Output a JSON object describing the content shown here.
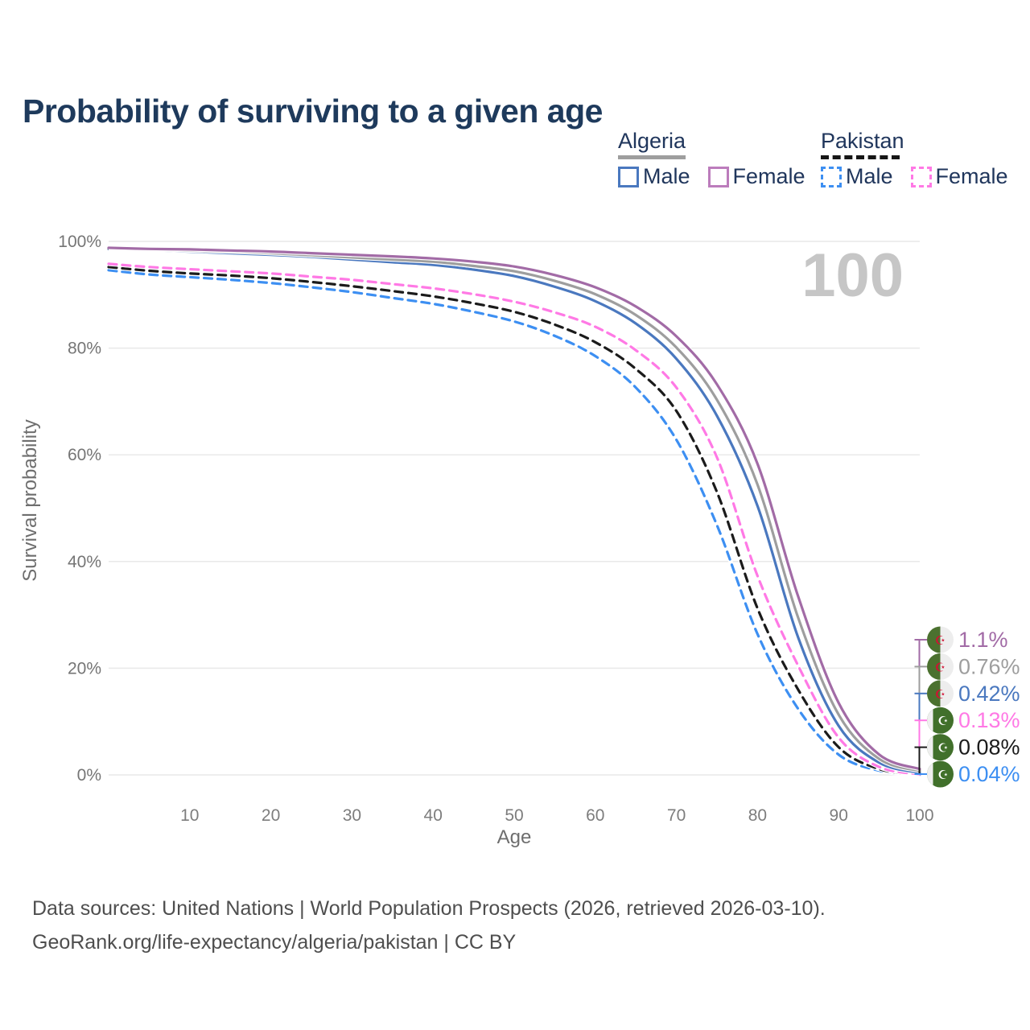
{
  "title": "Probability of surviving to a given age",
  "watermark_age": "100",
  "legend": {
    "groups": [
      {
        "label": "Algeria",
        "line_style": "solid",
        "line_color": "#9e9e9e",
        "items": [
          {
            "label": "Male",
            "color": "#4a78bf",
            "dash": false
          },
          {
            "label": "Female",
            "color": "#bc7cbc",
            "dash": false
          }
        ]
      },
      {
        "label": "Pakistan",
        "line_style": "dashed",
        "line_color": "#161616",
        "items": [
          {
            "label": "Male",
            "color": "#3d8ff2",
            "dash": true
          },
          {
            "label": "Female",
            "color": "#ff79e5",
            "dash": true
          }
        ]
      }
    ]
  },
  "axes": {
    "x": {
      "label": "Age",
      "ticks": [
        10,
        20,
        30,
        40,
        50,
        60,
        70,
        80,
        90,
        100
      ],
      "min": 0,
      "max": 100
    },
    "y": {
      "label": "Survival probability",
      "ticks": [
        "0%",
        "20%",
        "40%",
        "60%",
        "80%",
        "100%"
      ],
      "tick_values": [
        0,
        20,
        40,
        60,
        80,
        100
      ],
      "min": 0,
      "max": 100
    }
  },
  "chart_data": {
    "type": "line",
    "title": "Probability of surviving to a given age",
    "xlabel": "Age",
    "ylabel": "Survival probability",
    "xlim": [
      0,
      100
    ],
    "ylim": [
      0,
      100
    ],
    "grid": "horizontal",
    "legend_position": "top-right",
    "x": [
      0,
      5,
      10,
      15,
      20,
      25,
      30,
      35,
      40,
      45,
      50,
      55,
      60,
      65,
      70,
      75,
      80,
      85,
      90,
      95,
      100
    ],
    "series": [
      {
        "name": "Algeria Female",
        "country": "Algeria",
        "sex": "Female",
        "color": "#a26ba6",
        "dash": false,
        "flag": "algeria",
        "end_label": "1.1%",
        "values": [
          98.8,
          98.6,
          98.5,
          98.3,
          98.1,
          97.8,
          97.5,
          97.2,
          96.8,
          96.2,
          95.3,
          93.7,
          91.4,
          87.8,
          82.2,
          73.2,
          58.3,
          33.5,
          13.5,
          3.8,
          1.1
        ]
      },
      {
        "name": "Algeria Both sexes",
        "country": "Algeria",
        "sex": "Both",
        "color": "#9e9e9e",
        "dash": false,
        "flag": "algeria",
        "end_label": "0.76%",
        "values": [
          98.7,
          98.5,
          98.3,
          98.1,
          97.8,
          97.4,
          97.0,
          96.6,
          96.2,
          95.4,
          94.4,
          92.6,
          90.1,
          86.2,
          80.1,
          70.3,
          54.4,
          29.5,
          11.3,
          3.0,
          0.76
        ]
      },
      {
        "name": "Algeria Male",
        "country": "Algeria",
        "sex": "Male",
        "color": "#4a78bf",
        "dash": false,
        "flag": "algeria",
        "end_label": "0.42%",
        "values": [
          98.6,
          98.4,
          98.1,
          97.8,
          97.5,
          97.1,
          96.6,
          96.1,
          95.6,
          94.7,
          93.5,
          91.5,
          88.8,
          84.6,
          78.0,
          67.3,
          50.4,
          25.8,
          9.2,
          2.3,
          0.42
        ]
      },
      {
        "name": "Pakistan Female",
        "country": "Pakistan",
        "sex": "Female",
        "color": "#ff79e5",
        "dash": true,
        "flag": "pakistan",
        "end_label": "0.13%",
        "values": [
          95.8,
          95.2,
          94.8,
          94.4,
          94.0,
          93.4,
          92.8,
          92.0,
          91.2,
          90.1,
          88.7,
          86.7,
          84.0,
          79.6,
          72.6,
          59.5,
          37.3,
          20.5,
          7.0,
          1.5,
          0.13
        ]
      },
      {
        "name": "Pakistan Both sexes",
        "country": "Pakistan",
        "sex": "Both",
        "color": "#1b1b1b",
        "dash": true,
        "flag": "pakistan",
        "end_label": "0.08%",
        "values": [
          95.2,
          94.5,
          94.0,
          93.6,
          93.1,
          92.4,
          91.6,
          90.7,
          89.7,
          88.4,
          86.8,
          84.4,
          81.1,
          76.1,
          68.2,
          53.0,
          31.2,
          16.0,
          5.2,
          1.1,
          0.08
        ]
      },
      {
        "name": "Pakistan Male",
        "country": "Pakistan",
        "sex": "Male",
        "color": "#3d8ff2",
        "dash": true,
        "flag": "pakistan",
        "end_label": "0.04%",
        "values": [
          94.6,
          93.8,
          93.3,
          92.8,
          92.2,
          91.4,
          90.5,
          89.4,
          88.3,
          86.8,
          85.0,
          82.3,
          78.5,
          72.6,
          62.8,
          46.8,
          26.4,
          12.4,
          3.8,
          0.8,
          0.04
        ]
      }
    ]
  },
  "icons": {
    "star_and_crescent": "☪"
  },
  "flag_colors": {
    "algeria_green": "#4b712f",
    "algeria_white": "#ededed",
    "algeria_red": "#d21034",
    "pakistan_green": "#41702b",
    "pakistan_white": "#efefef"
  },
  "footer": {
    "line1": "Data sources: United Nations | World Population Prospects (2026, retrieved 2026-03-10).",
    "line2": "GeoRank.org/life-expectancy/algeria/pakistan | CC BY"
  }
}
